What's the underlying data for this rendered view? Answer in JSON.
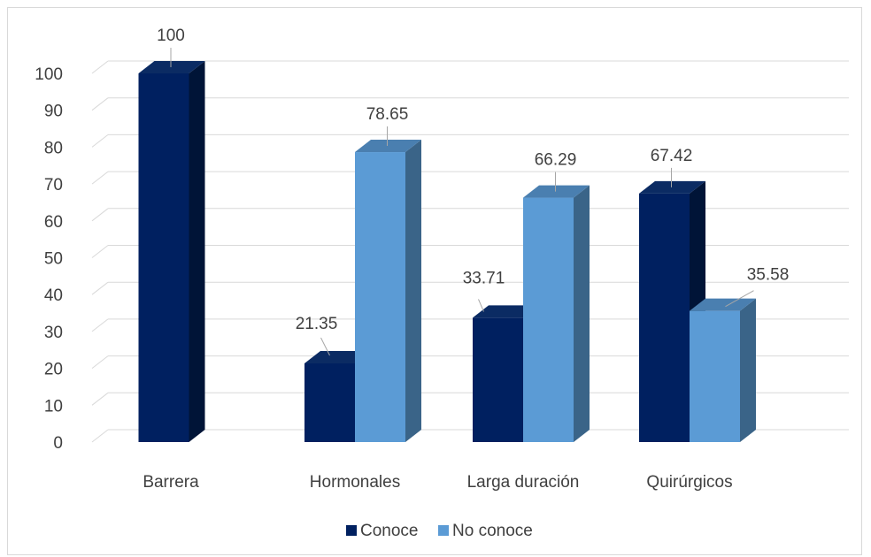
{
  "chart_data": {
    "type": "bar",
    "categories": [
      "Barrera",
      "Hormonales",
      "Larga duración",
      "Quirúrgicos"
    ],
    "series": [
      {
        "name": "Conoce",
        "values": [
          100,
          21.35,
          33.71,
          67.42
        ],
        "color": "#002060"
      },
      {
        "name": "No conoce",
        "values": [
          null,
          78.65,
          66.29,
          35.58
        ],
        "color": "#5b9bd5"
      }
    ],
    "data_labels": [
      [
        "100",
        "21.35",
        "33.71",
        "67.42"
      ],
      [
        null,
        "78.65",
        "66.29",
        "35.58"
      ]
    ],
    "y_ticks": [
      "0",
      "10",
      "20",
      "30",
      "40",
      "50",
      "60",
      "70",
      "80",
      "90",
      "100"
    ],
    "ylim": [
      0,
      100
    ],
    "grid": true,
    "legend_position": "bottom",
    "three_d": true
  },
  "colors": {
    "gridline": "#d9d9d9",
    "conoce_side": "#001437",
    "conoce_top": "#0b2b63",
    "noconoce_side": "#3a6488",
    "noconoce_top": "#4a7fb0"
  }
}
